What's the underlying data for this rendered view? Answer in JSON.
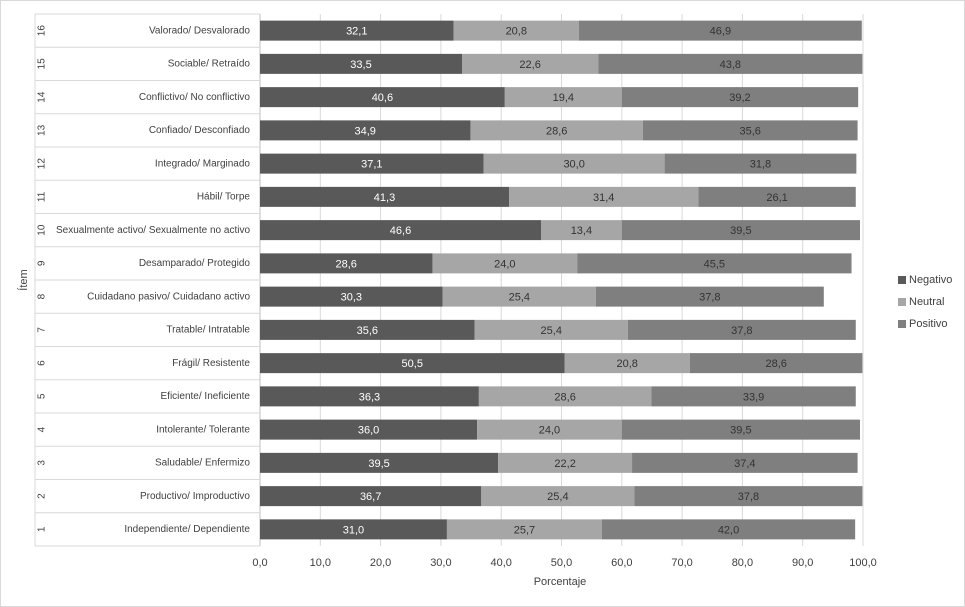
{
  "chart_data": {
    "type": "stacked_barh",
    "y_label": "Ítem",
    "x_label": "Porcentaje",
    "item_numbers": [
      "1",
      "2",
      "3",
      "4",
      "5",
      "6",
      "7",
      "8",
      "9",
      "10",
      "11",
      "12",
      "13",
      "14",
      "15",
      "16"
    ],
    "categories": [
      "Independiente/ Dependiente",
      "Productivo/ Improductivo",
      "Saludable/ Enfermizo",
      "Intolerante/ Tolerante",
      "Eficiente/ Ineficiente",
      "Frágil/ Resistente",
      "Tratable/ Intratable",
      "Cuidadano pasivo/ Cuidadano activo",
      "Desamparado/ Protegido",
      "Sexualmente activo/ Sexualmente no activo",
      "Hábil/ Torpe",
      "Integrado/ Marginado",
      "Confiado/ Desconfiado",
      "Conflictivo/ No conflictivo",
      "Sociable/ Retraído",
      "Valorado/ Desvalorado"
    ],
    "series": [
      {
        "name": "Negativo",
        "color": "#595959",
        "values": [
          31.0,
          36.7,
          39.5,
          36.0,
          36.3,
          50.5,
          35.6,
          30.3,
          28.6,
          46.6,
          41.3,
          37.1,
          34.9,
          40.6,
          33.5,
          32.1
        ],
        "value_labels": [
          "31,0",
          "36,7",
          "39,5",
          "36,0",
          "36,3",
          "50,5",
          "35,6",
          "30,3",
          "28,6",
          "46,6",
          "41,3",
          "37,1",
          "34,9",
          "40,6",
          "33,5",
          "32,1"
        ]
      },
      {
        "name": "Neutral",
        "color": "#a6a6a6",
        "values": [
          25.7,
          25.4,
          22.2,
          24.0,
          28.6,
          20.8,
          25.4,
          25.4,
          24.0,
          13.4,
          31.4,
          30.0,
          28.6,
          19.4,
          22.6,
          20.8
        ],
        "value_labels": [
          "25,7",
          "25,4",
          "22,2",
          "24,0",
          "28,6",
          "20,8",
          "25,4",
          "25,4",
          "24,0",
          "13,4",
          "31,4",
          "30,0",
          "28,6",
          "19,4",
          "22,6",
          "20,8"
        ]
      },
      {
        "name": "Positivo",
        "color": "#7f7f7f",
        "values": [
          42.0,
          37.8,
          37.4,
          39.5,
          33.9,
          28.6,
          37.8,
          37.8,
          45.5,
          39.5,
          26.1,
          31.8,
          35.6,
          39.2,
          43.8,
          46.9
        ],
        "value_labels": [
          "42,0",
          "37,8",
          "37,4",
          "39,5",
          "33,9",
          "28,6",
          "37,8",
          "37,8",
          "45,5",
          "39,5",
          "26,1",
          "31,8",
          "35,6",
          "39,2",
          "43,8",
          "46,9"
        ]
      }
    ],
    "xlim": [
      0,
      100
    ],
    "xticks": [
      {
        "value": 0,
        "label": "0,0"
      },
      {
        "value": 10,
        "label": "10,0"
      },
      {
        "value": 20,
        "label": "20,0"
      },
      {
        "value": 30,
        "label": "30,0"
      },
      {
        "value": 40,
        "label": "40,0"
      },
      {
        "value": 50,
        "label": "50,0"
      },
      {
        "value": 60,
        "label": "60,0"
      },
      {
        "value": 70,
        "label": "70,0"
      },
      {
        "value": 80,
        "label": "80,0"
      },
      {
        "value": 90,
        "label": "90,0"
      },
      {
        "value": 100,
        "label": "100,0"
      }
    ],
    "grid": true,
    "legend": "right"
  }
}
